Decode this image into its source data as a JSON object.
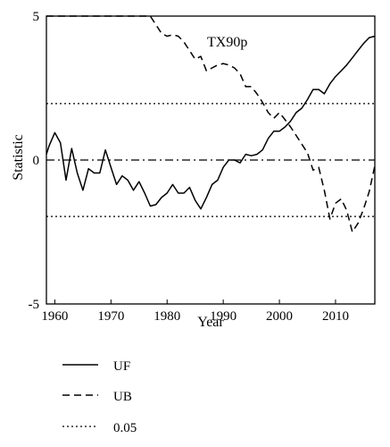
{
  "chart_data": {
    "type": "line",
    "title": "",
    "annotation": "TX90p",
    "xlabel": "Year",
    "ylabel": "Statistic",
    "xlim": [
      1958.5,
      2017
    ],
    "ylim": [
      -5,
      5
    ],
    "x_ticks": [
      1960,
      1970,
      1980,
      1990,
      2000,
      2010
    ],
    "y_ticks": [
      5,
      0,
      -5
    ],
    "grid": false,
    "legend_position": "bottom-left",
    "reference_lines": [
      {
        "name": "0.05",
        "y": 1.96,
        "style": "dotted"
      },
      {
        "name": "0.05",
        "y": -1.96,
        "style": "dotted"
      },
      {
        "name": "zero",
        "y": 0,
        "style": "dashdot"
      }
    ],
    "series": [
      {
        "name": "UF",
        "style": "solid",
        "x": [
          1958.5,
          1959,
          1960,
          1961,
          1962,
          1963,
          1964,
          1965,
          1966,
          1967,
          1968,
          1969,
          1970,
          1971,
          1972,
          1973,
          1974,
          1975,
          1976,
          1977,
          1978,
          1979,
          1980,
          1981,
          1982,
          1983,
          1984,
          1985,
          1986,
          1987,
          1988,
          1989,
          1990,
          1991,
          1992,
          1993,
          1994,
          1995,
          1996,
          1997,
          1998,
          1999,
          2000,
          2001,
          2002,
          2003,
          2004,
          2005,
          2006,
          2007,
          2008,
          2009,
          2010,
          2011,
          2012,
          2013,
          2014,
          2015,
          2016,
          2017
        ],
        "y": [
          0.2,
          0.5,
          0.95,
          0.6,
          -0.7,
          0.4,
          -0.45,
          -1.05,
          -0.3,
          -0.45,
          -0.45,
          0.35,
          -0.25,
          -0.85,
          -0.55,
          -0.7,
          -1.05,
          -0.75,
          -1.15,
          -1.6,
          -1.55,
          -1.3,
          -1.15,
          -0.85,
          -1.15,
          -1.15,
          -0.95,
          -1.4,
          -1.7,
          -1.3,
          -0.85,
          -0.7,
          -0.25,
          0.0,
          0.0,
          -0.1,
          0.2,
          0.15,
          0.2,
          0.35,
          0.75,
          1.0,
          1.0,
          1.15,
          1.35,
          1.65,
          1.8,
          2.1,
          2.45,
          2.45,
          2.3,
          2.65,
          2.9,
          3.1,
          3.3,
          3.55,
          3.8,
          4.05,
          4.25,
          4.3
        ]
      },
      {
        "name": "UB",
        "style": "dashed",
        "x": [
          1958.5,
          1959,
          1960,
          1961,
          1962,
          1963,
          1964,
          1965,
          1966,
          1967,
          1968,
          1969,
          1970,
          1971,
          1972,
          1973,
          1974,
          1975,
          1976,
          1977,
          1978,
          1979,
          1980,
          1981,
          1982,
          1983,
          1984,
          1985,
          1986,
          1987,
          1988,
          1989,
          1990,
          1991,
          1992,
          1993,
          1994,
          1995,
          1996,
          1997,
          1998,
          1999,
          2000,
          2001,
          2002,
          2003,
          2004,
          2005,
          2006,
          2007,
          2008,
          2009,
          2010,
          2011,
          2012,
          2013,
          2014,
          2015,
          2016,
          2017
        ],
        "y": [
          5.0,
          5.0,
          5.0,
          5.0,
          5.0,
          5.0,
          5.0,
          5.0,
          5.0,
          5.0,
          5.0,
          5.0,
          5.0,
          5.0,
          5.0,
          5.0,
          5.0,
          5.0,
          5.0,
          5.0,
          4.7,
          4.4,
          4.3,
          4.35,
          4.3,
          4.1,
          3.8,
          3.5,
          3.6,
          3.1,
          3.2,
          3.3,
          3.35,
          3.3,
          3.2,
          3.0,
          2.55,
          2.55,
          2.3,
          2.0,
          1.65,
          1.45,
          1.65,
          1.4,
          1.15,
          0.85,
          0.55,
          0.25,
          -0.35,
          -0.25,
          -1.05,
          -2.05,
          -1.5,
          -1.35,
          -1.75,
          -2.5,
          -2.2,
          -1.7,
          -1.1,
          -0.2
        ]
      }
    ]
  },
  "legend": {
    "items": [
      {
        "label": "UF",
        "style": "solid"
      },
      {
        "label": "UB",
        "style": "dashed"
      },
      {
        "label": "0.05",
        "style": "dotted"
      }
    ]
  }
}
